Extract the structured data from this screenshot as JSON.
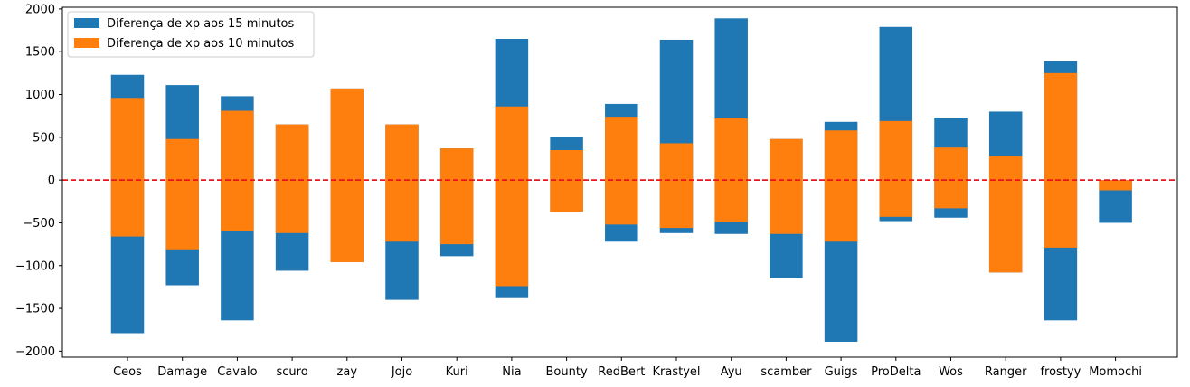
{
  "chart_data": {
    "type": "bar",
    "subtype": "floating-range",
    "title": "",
    "xlabel": "",
    "ylabel": "",
    "ylim": [
      -2070,
      2020
    ],
    "yticks": [
      2000,
      1500,
      1000,
      500,
      0,
      -500,
      -1000,
      -1500,
      -2000
    ],
    "grid": false,
    "legend_position": "top-left",
    "reference_line": {
      "y": 0,
      "color": "#e8141c",
      "style": "dashed"
    },
    "categories": [
      "Ceos",
      "Damage",
      "Cavalo",
      "scuro",
      "zay",
      "Jojo",
      "Kuri",
      "Nia",
      "Bounty",
      "RedBert",
      "Krastyel",
      "Ayu",
      "scamber",
      "Guigs",
      "ProDelta",
      "Wos",
      "Ranger",
      "frostyy",
      "Momochi"
    ],
    "series": [
      {
        "name": "Diferença de xp aos 15 minutos",
        "color": "#1f77b4",
        "low": [
          -1790,
          -1230,
          -1640,
          -1060,
          -950,
          -1400,
          -890,
          -1380,
          -370,
          -720,
          -620,
          -630,
          -1150,
          -1890,
          -480,
          -440,
          -1080,
          -1640,
          -500
        ],
        "high": [
          1230,
          1110,
          980,
          650,
          1070,
          650,
          370,
          1650,
          500,
          890,
          1640,
          1890,
          480,
          680,
          1790,
          730,
          800,
          1390,
          0
        ]
      },
      {
        "name": "Diferença de xp aos 10 minutos",
        "color": "#ff7f0e",
        "low": [
          -660,
          -810,
          -600,
          -620,
          -960,
          -720,
          -750,
          -1240,
          -370,
          -520,
          -560,
          -490,
          -630,
          -720,
          -430,
          -330,
          -1080,
          -790,
          -120
        ],
        "high": [
          960,
          480,
          810,
          650,
          1070,
          650,
          370,
          860,
          350,
          740,
          430,
          720,
          480,
          580,
          690,
          380,
          280,
          1250,
          0
        ]
      }
    ]
  }
}
